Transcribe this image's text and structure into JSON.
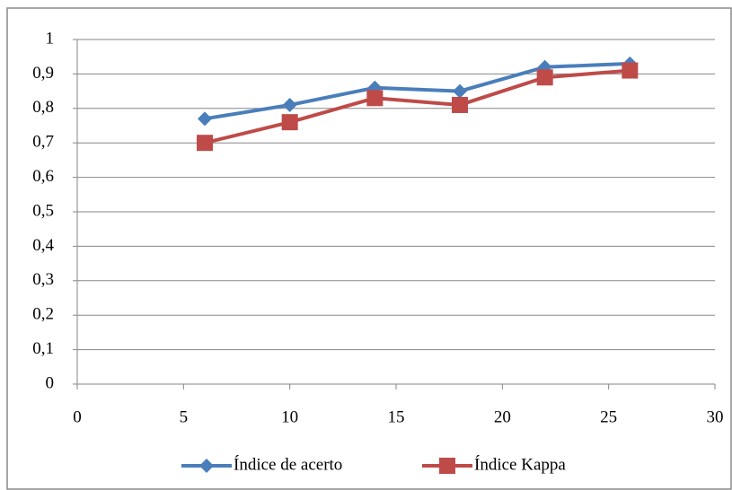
{
  "chart_data": {
    "type": "line",
    "x": [
      6,
      10,
      14,
      18,
      22,
      26
    ],
    "series": [
      {
        "name": "Índice de acerto",
        "color": "#4a7ebb",
        "marker": "diamond",
        "values": [
          0.77,
          0.81,
          0.86,
          0.85,
          0.92,
          0.93
        ]
      },
      {
        "name": "Índice Kappa",
        "color": "#be4b48",
        "marker": "square",
        "values": [
          0.7,
          0.76,
          0.83,
          0.81,
          0.89,
          0.91
        ]
      }
    ],
    "xlim": [
      0,
      30
    ],
    "xticks": [
      0,
      5,
      10,
      15,
      20,
      25,
      30
    ],
    "ylim": [
      0,
      1
    ],
    "yticks": [
      0,
      {
        "value": 0.1,
        "label": "0,1"
      },
      {
        "value": 0.2,
        "label": "0,2"
      },
      {
        "value": 0.3,
        "label": "0,3"
      },
      {
        "value": 0.4,
        "label": "0,4"
      },
      {
        "value": 0.5,
        "label": "0,5"
      },
      {
        "value": 0.6,
        "label": "0,6"
      },
      {
        "value": 0.7,
        "label": "0,7"
      },
      {
        "value": 0.8,
        "label": "0,8"
      },
      {
        "value": 0.9,
        "label": "0,9"
      },
      1
    ],
    "grid": true,
    "legend": "bottom"
  }
}
